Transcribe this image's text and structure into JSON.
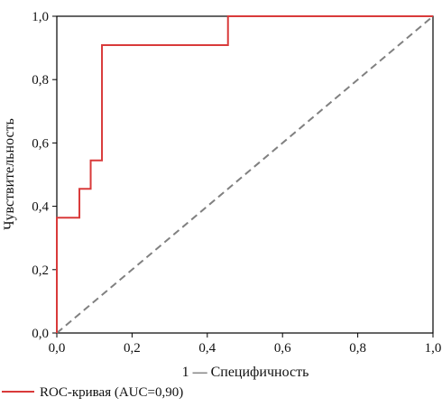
{
  "chart_data": {
    "type": "line",
    "title": "",
    "xlabel": "1 — Специфичность",
    "ylabel": "Чувствительность",
    "xlim": [
      0,
      1
    ],
    "ylim": [
      0,
      1
    ],
    "x_ticks": [
      "0,0",
      "0,2",
      "0,4",
      "0,6",
      "0,8",
      "1,0"
    ],
    "y_ticks": [
      "0,0",
      "0,2",
      "0,4",
      "0,6",
      "0,8",
      "1,0"
    ],
    "grid": false,
    "legend_position": "bottom-left",
    "series": [
      {
        "name": "ROC-кривая (AUC=0,90)",
        "color": "#d93a3a",
        "style": "solid",
        "x": [
          0,
          0,
          0.06,
          0.06,
          0.09,
          0.09,
          0.12,
          0.12,
          0.455,
          0.455,
          1.0
        ],
        "y": [
          0,
          0.364,
          0.364,
          0.455,
          0.455,
          0.545,
          0.545,
          0.909,
          0.909,
          1.0,
          1.0
        ]
      },
      {
        "color": "#808080",
        "style": "dashed",
        "x": [
          0,
          1
        ],
        "y": [
          0,
          1
        ]
      }
    ]
  }
}
